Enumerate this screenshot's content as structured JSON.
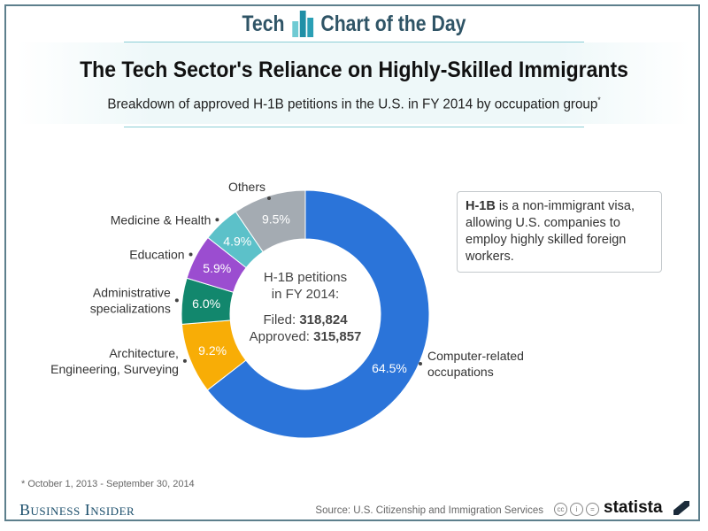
{
  "header": {
    "brand_left": "Tech",
    "brand_right": "Chart of the Day",
    "title": "The Tech Sector's Reliance on Highly-Skilled Immigrants",
    "subtitle": "Breakdown of approved H-1B petitions in the U.S. in FY 2014 by occupation group",
    "subtitle_mark": "*"
  },
  "chart_data": {
    "type": "pie",
    "donut": true,
    "categories": [
      "Computer-related occupations",
      "Architecture, Engineering, Surveying",
      "Administrative specializations",
      "Education",
      "Medicine & Health",
      "Others"
    ],
    "label_lines": [
      [
        "Computer-related",
        "occupations"
      ],
      [
        "Architecture,",
        "Engineering, Surveying"
      ],
      [
        "Administrative",
        "specializations"
      ],
      [
        "Education"
      ],
      [
        "Medicine & Health"
      ],
      [
        "Others"
      ]
    ],
    "values": [
      64.5,
      9.2,
      6.0,
      5.9,
      4.9,
      9.5
    ],
    "value_labels": [
      "64.5%",
      "9.2%",
      "6.0%",
      "5.9%",
      "4.9%",
      "9.5%"
    ],
    "colors": [
      "#2b74d9",
      "#f8ad06",
      "#12876d",
      "#9b4dd0",
      "#5cc1c9",
      "#a4abb2"
    ],
    "unit": "%",
    "start": "top",
    "direction": "clockwise",
    "center_text": {
      "line1": "H-1B petitions",
      "line2": "in FY 2014:",
      "filed_label": "Filed:",
      "filed_value": "318,824",
      "approved_label": "Approved:",
      "approved_value": "315,857"
    }
  },
  "info": {
    "bold": "H-1B",
    "text": " is a non-immigrant visa, allowing U.S. companies to employ highly skilled foreign workers."
  },
  "footer": {
    "note": "* October 1, 2013 - September 30, 2014",
    "publisher": "Business Insider",
    "source": "Source: U.S. Citizenship and Immigration Services",
    "cc_icons": [
      "cc",
      "by",
      "nd"
    ],
    "statista": "statista"
  }
}
